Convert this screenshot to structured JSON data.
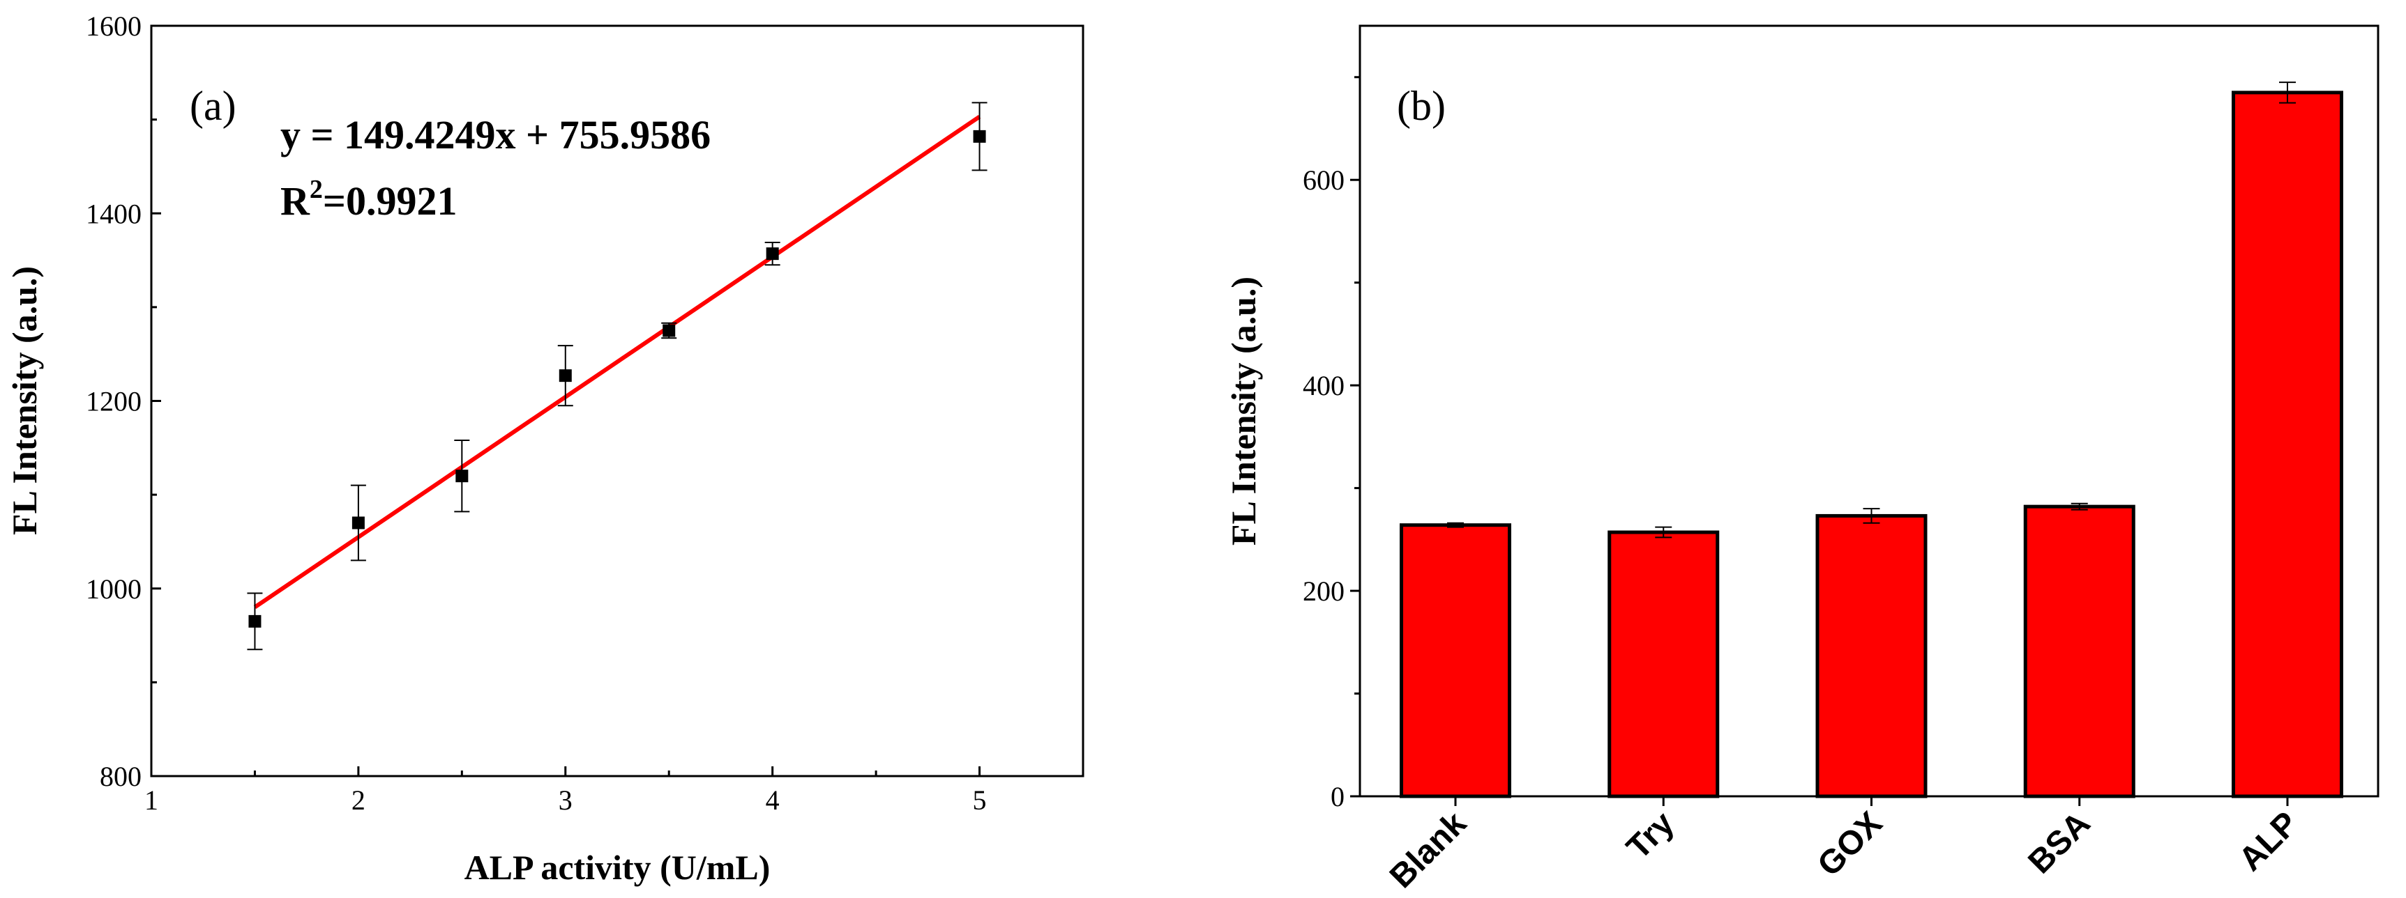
{
  "chart_data": [
    {
      "type": "scatter",
      "panel_label": "(a)",
      "xlabel": "ALP activity (U/mL)",
      "ylabel": "FL Intensity (a.u.)",
      "xlim": [
        1,
        5.5
      ],
      "ylim": [
        800,
        1600
      ],
      "xticks": [
        1,
        2,
        3,
        4,
        5
      ],
      "yticks": [
        800,
        1000,
        1200,
        1400,
        1600
      ],
      "x": [
        1.5,
        2.0,
        2.5,
        3.0,
        3.5,
        4.0,
        5.0
      ],
      "y": [
        965,
        1070,
        1120,
        1227,
        1275,
        1357,
        1482
      ],
      "error": [
        30,
        40,
        38,
        32,
        8,
        12,
        36
      ],
      "point_color": "#000000",
      "fit": {
        "slope": 149.4249,
        "intercept": 755.9586,
        "x_range": [
          1.5,
          5.0
        ],
        "color": "#ff0000",
        "equation": "y = 149.4249x + 755.9586",
        "r2_prefix": "R",
        "r2_sup": "2",
        "r2_value": "=0.9921"
      }
    },
    {
      "type": "bar",
      "panel_label": "(b)",
      "xlabel": "",
      "ylabel": "FL Intensity (a.u.)",
      "ylim": [
        0,
        750
      ],
      "yticks": [
        0,
        200,
        400,
        600
      ],
      "categories": [
        "Blank",
        "Try",
        "GOX",
        "BSA",
        "ALP"
      ],
      "values": [
        264,
        257,
        273,
        282,
        685
      ],
      "error": [
        2,
        5,
        7,
        3,
        10
      ],
      "bar_color": "#ff0000"
    }
  ]
}
